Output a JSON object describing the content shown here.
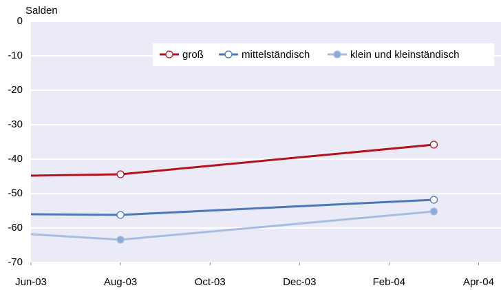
{
  "chart_data": {
    "type": "line",
    "y_label": "Salden",
    "x": [
      0,
      2,
      9
    ],
    "xlim": [
      0,
      10.5
    ],
    "xticks": [
      {
        "value": 0,
        "label": "Jun-03"
      },
      {
        "value": 2,
        "label": "Aug-03"
      },
      {
        "value": 4,
        "label": "Oct-03"
      },
      {
        "value": 6,
        "label": "Dec-03"
      },
      {
        "value": 8,
        "label": "Feb-04"
      },
      {
        "value": 10,
        "label": "Apr-04"
      }
    ],
    "ylim": [
      -70,
      0
    ],
    "yticks": [
      0,
      -10,
      -20,
      -30,
      -40,
      -50,
      -60,
      -70
    ],
    "grid": true,
    "legend": "upper right",
    "series": [
      {
        "name": "groß",
        "color": "#b5121b",
        "marker_fill": "#ffffff",
        "values": [
          -44.8,
          -44.4,
          -35.8
        ]
      },
      {
        "name": "mittelständisch",
        "color": "#4a78b8",
        "marker_fill": "#ffffff",
        "values": [
          -56.0,
          -56.2,
          -51.8
        ]
      },
      {
        "name": "klein und kleinständisch",
        "color": "#a7bde0",
        "marker_fill": "#8eaadb",
        "values": [
          -61.8,
          -63.4,
          -55.2
        ]
      }
    ]
  }
}
